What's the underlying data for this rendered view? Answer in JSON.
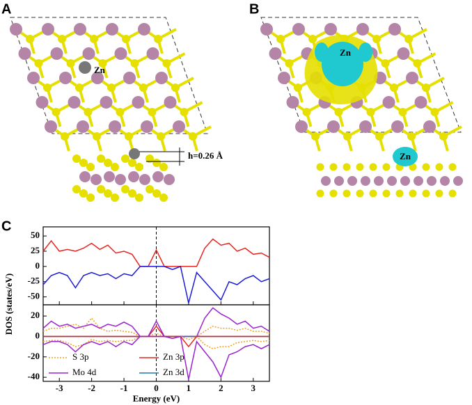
{
  "panels": [
    {
      "label": "A",
      "atom_label": "Zn",
      "annotation": "h=0.26 Å"
    },
    {
      "label": "B",
      "atom_labels": [
        "Zn",
        "Zn"
      ]
    },
    {
      "label": "C"
    }
  ],
  "chart_data": [
    {
      "type": "line",
      "ylabel": "DOS (states/eV)",
      "x": [
        -3.5,
        -3.25,
        -3,
        -2.75,
        -2.5,
        -2.25,
        -2,
        -1.75,
        -1.5,
        -1.25,
        -1,
        -0.75,
        -0.5,
        -0.25,
        0,
        0.25,
        0.5,
        0.75,
        1,
        1.25,
        1.5,
        1.75,
        2,
        2.25,
        2.5,
        2.75,
        3,
        3.25,
        3.5
      ],
      "series": [
        {
          "color": "#e8241f",
          "values": [
            25,
            42,
            25,
            28,
            25,
            30,
            38,
            28,
            35,
            22,
            25,
            20,
            0,
            0,
            27,
            0,
            0,
            0,
            0,
            0,
            30,
            45,
            35,
            38,
            25,
            30,
            20,
            22,
            15
          ]
        },
        {
          "color": "#1a1ad8",
          "values": [
            -30,
            -15,
            -10,
            -15,
            -35,
            -15,
            -10,
            -15,
            -12,
            -20,
            -12,
            -15,
            0,
            0,
            0,
            0,
            -5,
            0,
            -60,
            -10,
            -25,
            -40,
            -55,
            -25,
            -30,
            -20,
            -15,
            -25,
            -20
          ]
        }
      ],
      "xlim": [
        -3.5,
        3.5
      ],
      "ylim": [
        -63,
        65
      ],
      "yticks": [
        -50,
        -25,
        0,
        25,
        50
      ]
    },
    {
      "type": "line",
      "xlabel": "Energy (eV)",
      "x": [
        -3.5,
        -3.25,
        -3,
        -2.75,
        -2.5,
        -2.25,
        -2,
        -1.75,
        -1.5,
        -1.25,
        -1,
        -0.75,
        -0.5,
        -0.25,
        0,
        0.25,
        0.5,
        0.75,
        1,
        1.25,
        1.5,
        1.75,
        2,
        2.25,
        2.5,
        2.75,
        3,
        3.25,
        3.5
      ],
      "series": [
        {
          "name": "S 3p",
          "color": "#f0a020",
          "style": "dotted",
          "values": [
            5,
            8,
            8,
            10,
            12,
            8,
            18,
            8,
            5,
            6,
            5,
            4,
            0,
            0,
            3,
            0,
            0,
            0,
            0,
            0,
            5,
            10,
            8,
            8,
            6,
            8,
            5,
            5,
            3
          ]
        },
        {
          "name": "Zn 3p",
          "color": "#e8241f",
          "values": [
            0,
            0,
            0,
            0,
            0,
            0,
            0,
            0,
            0,
            0,
            0,
            0,
            0,
            0,
            10,
            0,
            0,
            0,
            0,
            0,
            0,
            0,
            0,
            0,
            0,
            0,
            0,
            0,
            0
          ]
        },
        {
          "name": "Mo 4d",
          "color": "#9a22d0",
          "values": [
            8,
            15,
            10,
            12,
            8,
            10,
            12,
            8,
            12,
            10,
            14,
            10,
            0,
            0,
            15,
            0,
            0,
            0,
            0,
            0,
            18,
            28,
            22,
            18,
            12,
            15,
            8,
            10,
            5
          ]
        },
        {
          "name": "Zn 3d",
          "color": "#1f78b4",
          "values": [
            0,
            0,
            0,
            0,
            0,
            0,
            0,
            0,
            0,
            0,
            0,
            0,
            0,
            0,
            0,
            0,
            0,
            0,
            0,
            0,
            0,
            0,
            0,
            0,
            0,
            0,
            0,
            0,
            0
          ]
        },
        {
          "color": "#f0a020",
          "style": "dotted",
          "values": [
            -5,
            -4,
            -4,
            -6,
            -10,
            -8,
            -3,
            -5,
            -4,
            -5,
            -4,
            -4,
            0,
            0,
            0,
            0,
            0,
            0,
            -3,
            0,
            -8,
            -12,
            -10,
            -10,
            -6,
            -5,
            -4,
            -5,
            -4
          ]
        },
        {
          "color": "#e8241f",
          "values": [
            0,
            0,
            0,
            0,
            0,
            0,
            0,
            0,
            0,
            0,
            0,
            0,
            0,
            0,
            0,
            0,
            0,
            0,
            -10,
            0,
            0,
            0,
            0,
            0,
            0,
            0,
            0,
            0,
            0
          ]
        },
        {
          "color": "#9a22d0",
          "values": [
            -8,
            -5,
            -5,
            -8,
            -15,
            -8,
            -5,
            -8,
            -5,
            -10,
            -5,
            -8,
            0,
            0,
            0,
            0,
            -2,
            0,
            -42,
            -5,
            -15,
            -25,
            -40,
            -18,
            -15,
            -10,
            -8,
            -12,
            -8
          ]
        }
      ],
      "xlim": [
        -3.5,
        3.5
      ],
      "ylim": [
        -44,
        31
      ],
      "xticks": [
        -3,
        -2,
        -1,
        0,
        1,
        2,
        3
      ],
      "yticks": [
        -40,
        -20,
        0,
        20
      ],
      "legend": "lower left"
    }
  ]
}
